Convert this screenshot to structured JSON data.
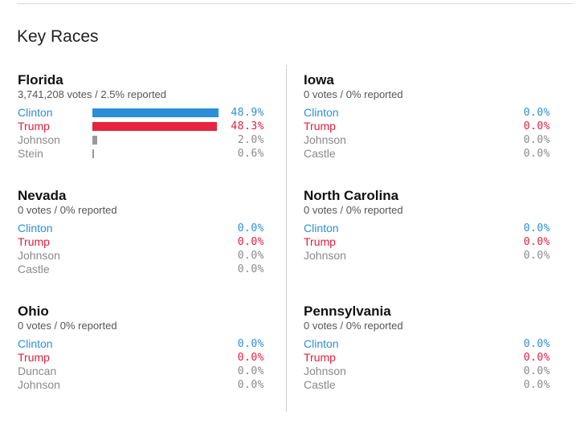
{
  "page": {
    "title": "Key Races"
  },
  "colors": {
    "democrat": "#2b8fd9",
    "republican": "#e8233f",
    "other": "#9a9a9a"
  },
  "races": [
    {
      "state": "Florida",
      "summary": "3,741,208 votes / 2.5% reported",
      "candidates": [
        {
          "name": "Clinton",
          "pct": "48.9%",
          "share": 0.489,
          "party": "democrat"
        },
        {
          "name": "Trump",
          "pct": "48.3%",
          "share": 0.483,
          "party": "republican"
        },
        {
          "name": "Johnson",
          "pct": "2.0%",
          "share": 0.02,
          "party": "other"
        },
        {
          "name": "Stein",
          "pct": "0.6%",
          "share": 0.006,
          "party": "other"
        }
      ]
    },
    {
      "state": "Iowa",
      "summary": "0 votes / 0% reported",
      "candidates": [
        {
          "name": "Clinton",
          "pct": "0.0%",
          "share": 0,
          "party": "democrat"
        },
        {
          "name": "Trump",
          "pct": "0.0%",
          "share": 0,
          "party": "republican"
        },
        {
          "name": "Johnson",
          "pct": "0.0%",
          "share": 0,
          "party": "other"
        },
        {
          "name": "Castle",
          "pct": "0.0%",
          "share": 0,
          "party": "other"
        }
      ]
    },
    {
      "state": "Nevada",
      "summary": "0 votes / 0% reported",
      "candidates": [
        {
          "name": "Clinton",
          "pct": "0.0%",
          "share": 0,
          "party": "democrat"
        },
        {
          "name": "Trump",
          "pct": "0.0%",
          "share": 0,
          "party": "republican"
        },
        {
          "name": "Johnson",
          "pct": "0.0%",
          "share": 0,
          "party": "other"
        },
        {
          "name": "Castle",
          "pct": "0.0%",
          "share": 0,
          "party": "other"
        }
      ]
    },
    {
      "state": "North Carolina",
      "summary": "0 votes / 0% reported",
      "candidates": [
        {
          "name": "Clinton",
          "pct": "0.0%",
          "share": 0,
          "party": "democrat"
        },
        {
          "name": "Trump",
          "pct": "0.0%",
          "share": 0,
          "party": "republican"
        },
        {
          "name": "Johnson",
          "pct": "0.0%",
          "share": 0,
          "party": "other"
        }
      ]
    },
    {
      "state": "Ohio",
      "summary": "0 votes / 0% reported",
      "candidates": [
        {
          "name": "Clinton",
          "pct": "0.0%",
          "share": 0,
          "party": "democrat"
        },
        {
          "name": "Trump",
          "pct": "0.0%",
          "share": 0,
          "party": "republican"
        },
        {
          "name": "Duncan",
          "pct": "0.0%",
          "share": 0,
          "party": "other"
        },
        {
          "name": "Johnson",
          "pct": "0.0%",
          "share": 0,
          "party": "other"
        }
      ]
    },
    {
      "state": "Pennsylvania",
      "summary": "0 votes / 0% reported",
      "candidates": [
        {
          "name": "Clinton",
          "pct": "0.0%",
          "share": 0,
          "party": "democrat"
        },
        {
          "name": "Trump",
          "pct": "0.0%",
          "share": 0,
          "party": "republican"
        },
        {
          "name": "Johnson",
          "pct": "0.0%",
          "share": 0,
          "party": "other"
        },
        {
          "name": "Castle",
          "pct": "0.0%",
          "share": 0,
          "party": "other"
        }
      ]
    }
  ]
}
